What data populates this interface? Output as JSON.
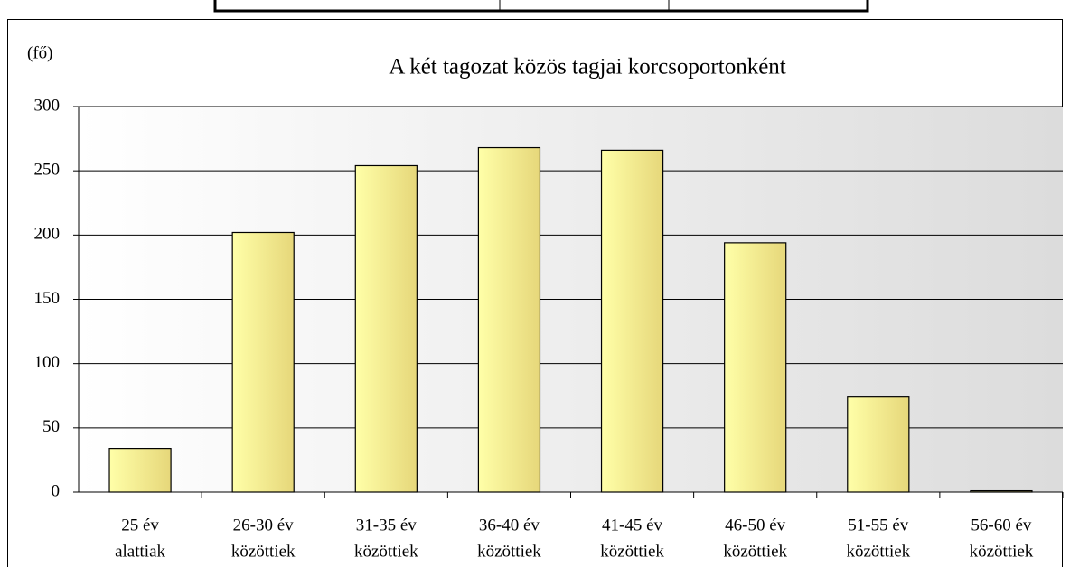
{
  "chart_data": {
    "type": "bar",
    "title": "A két tagozat közös tagjai korcsoportonként",
    "y_label": "(fő)",
    "categories": [
      [
        "25 év",
        "alattiak"
      ],
      [
        "26-30 év",
        "közöttiek"
      ],
      [
        "31-35 év",
        "közöttiek"
      ],
      [
        "36-40 év",
        "közöttiek"
      ],
      [
        "41-45 év",
        "közöttiek"
      ],
      [
        "46-50 év",
        "közöttiek"
      ],
      [
        "51-55 év",
        "közöttiek"
      ],
      [
        "56-60 év",
        "közöttiek"
      ]
    ],
    "values": [
      34,
      202,
      254,
      268,
      266,
      194,
      74,
      1
    ],
    "color": "#ffff99",
    "ylim": [
      0,
      300
    ],
    "yticks": [
      0,
      50,
      100,
      150,
      200,
      250,
      300
    ],
    "grid": true
  }
}
